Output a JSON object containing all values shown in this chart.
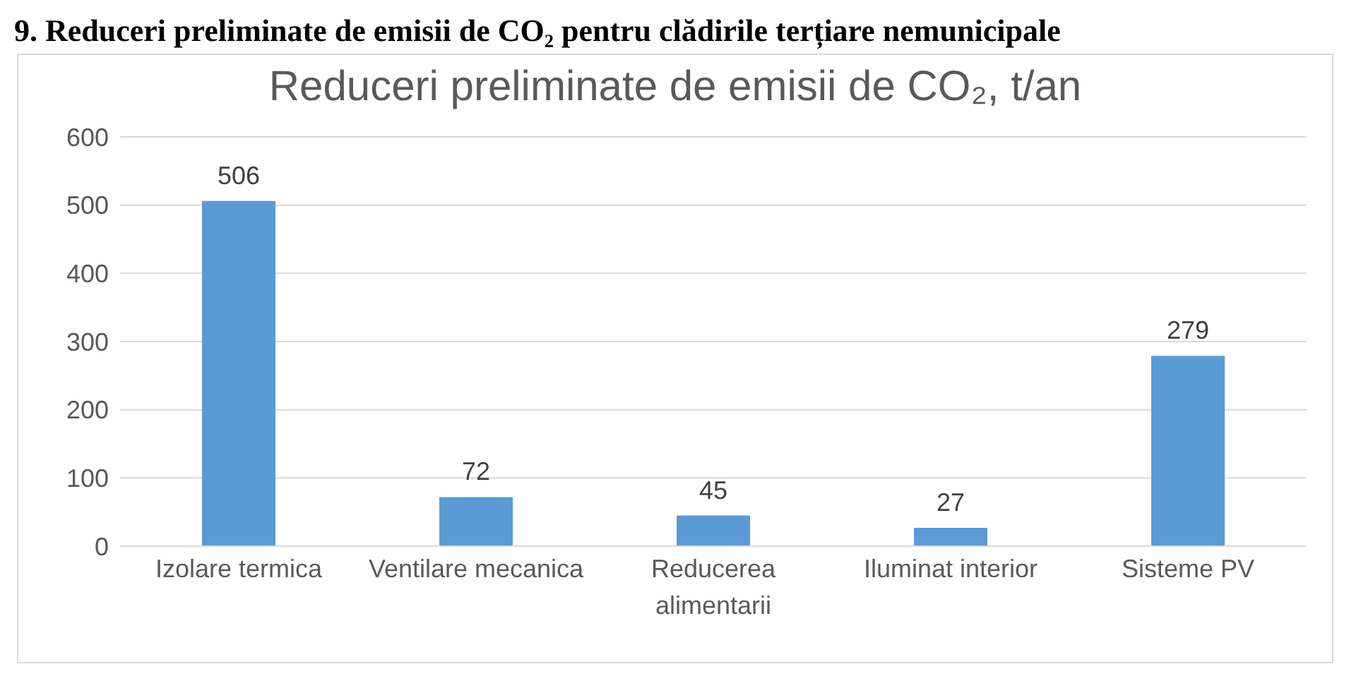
{
  "chart_data": {
    "type": "bar",
    "title": "Reduceri preliminate de emisii de CO₂, t/an",
    "annotations": [
      "9. Reduceri preliminate de emisii de CO₂ pentru clădirile terțiare nemunicipale"
    ],
    "categories": [
      "Izolare termica",
      "Ventilare mecanica",
      "Reducerea alimentarii",
      "Iluminat interior",
      "Sisteme PV"
    ],
    "values": [
      506,
      72,
      45,
      27,
      279
    ],
    "color": "#5b9bd5",
    "ylim": [
      0,
      600
    ],
    "yticks": [
      0,
      100,
      200,
      300,
      400,
      500,
      600
    ],
    "grid": "y",
    "data_labels": true
  }
}
